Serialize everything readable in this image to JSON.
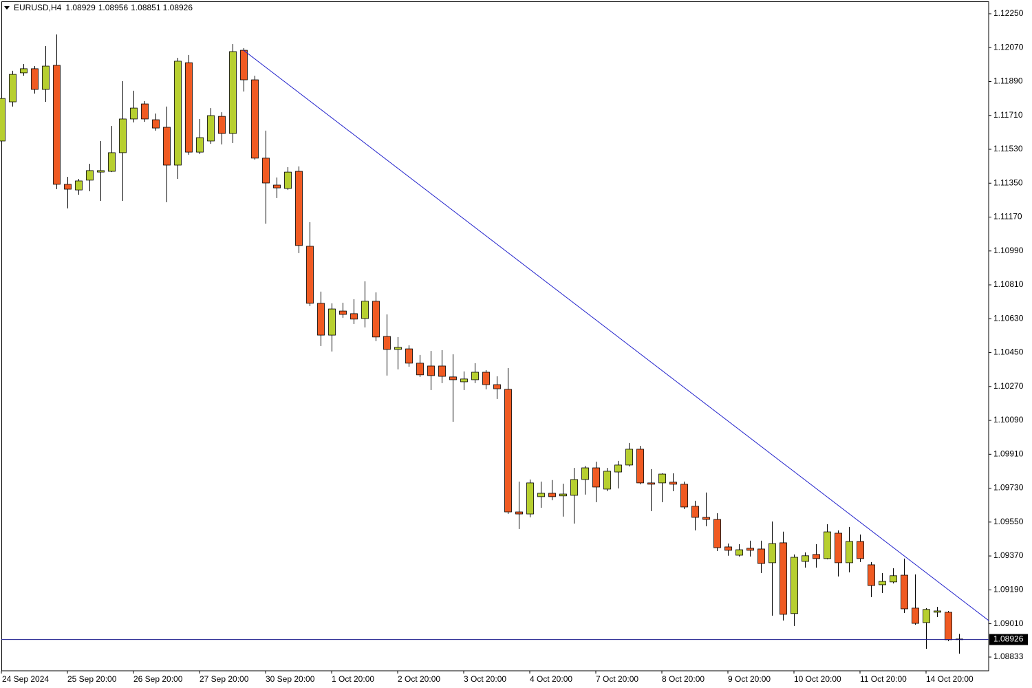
{
  "chart_data": {
    "type": "candlestick",
    "title": "EURUSD,H4",
    "categories": [
      "24 Sep 2024",
      null,
      null,
      null,
      null,
      null,
      "25 Sep 20:00",
      null,
      null,
      null,
      null,
      null,
      "26 Sep 20:00",
      null,
      null,
      null,
      null,
      null,
      "27 Sep 20:00",
      null,
      null,
      null,
      null,
      null,
      "30 Sep 20:00",
      null,
      null,
      null,
      null,
      null,
      "1 Oct 20:00",
      null,
      null,
      null,
      null,
      null,
      "2 Oct 20:00",
      null,
      null,
      null,
      null,
      null,
      "3 Oct 20:00",
      null,
      null,
      null,
      null,
      null,
      "4 Oct 20:00",
      null,
      null,
      null,
      null,
      null,
      "7 Oct 20:00",
      null,
      null,
      null,
      null,
      null,
      "8 Oct 20:00",
      null,
      null,
      null,
      null,
      null,
      "9 Oct 20:00",
      null,
      null,
      null,
      null,
      null,
      "10 Oct 20:00",
      null,
      null,
      null,
      null,
      null,
      "11 Oct 20:00",
      null,
      null,
      null,
      null,
      null,
      "14 Oct 20:00",
      null,
      null,
      null
    ],
    "open": [
      1.11574,
      1.11782,
      1.11936,
      1.11958,
      1.11848,
      1.11976,
      1.11344,
      1.11314,
      1.11366,
      1.11409,
      1.11413,
      1.11512,
      1.11691,
      1.11771,
      1.11687,
      1.11647,
      1.11446,
      1.1199,
      1.11515,
      1.11574,
      1.11705,
      1.11614,
      1.12056,
      1.11899,
      1.11483,
      1.1134,
      1.11322,
      1.11413,
      1.11015,
      1.10712,
      1.10543,
      1.10671,
      1.10657,
      1.10631,
      1.10723,
      1.10536,
      1.10467,
      1.1047,
      1.10394,
      1.10379,
      1.10379,
      1.10321,
      1.10295,
      1.10306,
      1.10346,
      1.1028,
      1.10255,
      1.09604,
      1.09593,
      1.09685,
      1.09703,
      1.09689,
      1.09692,
      1.09776,
      1.09838,
      1.09725,
      1.09816,
      1.09853,
      1.09937,
      1.09758,
      1.09758,
      1.09762,
      1.09751,
      1.09634,
      1.09575,
      1.09564,
      1.09418,
      1.09374,
      1.09411,
      1.09407,
      1.09334,
      1.0944,
      1.09064,
      1.09341,
      1.09378,
      1.09356,
      1.09491,
      1.09334,
      1.09447,
      1.09323,
      1.09217,
      1.09232,
      1.09268,
      1.09093,
      1.09016,
      1.09071,
      1.09071,
      1.08929
    ],
    "high": [
      1.11811,
      1.11947,
      1.11983,
      1.11972,
      1.12078,
      1.1214,
      1.11384,
      1.11373,
      1.11453,
      1.11574,
      1.11654,
      1.11892,
      1.11841,
      1.11786,
      1.1172,
      1.11757,
      1.12016,
      1.12031,
      1.11691,
      1.11749,
      1.11727,
      1.12089,
      1.12067,
      1.11921,
      1.11629,
      1.1138,
      1.11435,
      1.11439,
      1.11143,
      1.10774,
      1.10712,
      1.10715,
      1.10734,
      1.10829,
      1.1077,
      1.10653,
      1.10533,
      1.10489,
      1.10438,
      1.10459,
      1.10463,
      1.10441,
      1.1035,
      1.10394,
      1.10357,
      1.10324,
      1.10368,
      1.09765,
      1.09776,
      1.09765,
      1.09773,
      1.09754,
      1.09838,
      1.09849,
      1.09871,
      1.09838,
      1.09875,
      1.0997,
      1.09955,
      1.09831,
      1.09809,
      1.09809,
      1.09765,
      1.09663,
      1.09707,
      1.09597,
      1.09436,
      1.09433,
      1.09451,
      1.09451,
      1.09553,
      1.09499,
      1.09378,
      1.09389,
      1.09433,
      1.09539,
      1.09506,
      1.09524,
      1.09484,
      1.09338,
      1.09279,
      1.09305,
      1.09356,
      1.09272,
      1.09093,
      1.091,
      1.09078,
      1.08956
    ],
    "low": [
      1.11548,
      1.11757,
      1.11921,
      1.11826,
      1.11782,
      1.11318,
      1.11216,
      1.11289,
      1.11307,
      1.11256,
      1.11409,
      1.11256,
      1.11673,
      1.11676,
      1.11629,
      1.11249,
      1.11373,
      1.11501,
      1.11505,
      1.11559,
      1.11556,
      1.11563,
      1.11837,
      1.11475,
      1.11135,
      1.11271,
      1.11314,
      1.10978,
      1.10697,
      1.10485,
      1.10456,
      1.10635,
      1.10602,
      1.10584,
      1.10511,
      1.10328,
      1.10361,
      1.10375,
      1.10321,
      1.10251,
      1.10288,
      1.10083,
      1.10251,
      1.10288,
      1.10255,
      1.10204,
      1.09593,
      1.09513,
      1.09575,
      1.09626,
      1.09666,
      1.09579,
      1.09542,
      1.09696,
      1.09656,
      1.09714,
      1.09729,
      1.09846,
      1.09751,
      1.09608,
      1.09656,
      1.09714,
      1.09619,
      1.09506,
      1.09528,
      1.09396,
      1.09371,
      1.09367,
      1.09367,
      1.09279,
      1.09053,
      1.09027,
      1.08998,
      1.09308,
      1.09308,
      1.09352,
      1.09261,
      1.09283,
      1.09338,
      1.09151,
      1.09173,
      1.09224,
      1.09067,
      1.09005,
      1.08877,
      1.09045,
      1.08917,
      1.08851
    ],
    "close": [
      1.118,
      1.11928,
      1.11958,
      1.11848,
      1.11972,
      1.11344,
      1.11318,
      1.11362,
      1.11417,
      1.11417,
      1.11512,
      1.11691,
      1.11749,
      1.11691,
      1.11643,
      1.11446,
      1.11998,
      1.11515,
      1.11592,
      1.11709,
      1.11614,
      1.12049,
      1.11899,
      1.11483,
      1.11351,
      1.11325,
      1.11409,
      1.11019,
      1.10712,
      1.10543,
      1.10682,
      1.10653,
      1.10628,
      1.10723,
      1.10533,
      1.10467,
      1.10478,
      1.10394,
      1.10332,
      1.10328,
      1.10324,
      1.10306,
      1.1031,
      1.10346,
      1.1028,
      1.10258,
      1.09604,
      1.09593,
      1.09758,
      1.09703,
      1.09685,
      1.09699,
      1.09776,
      1.09838,
      1.09736,
      1.0982,
      1.09853,
      1.09937,
      1.09758,
      1.09751,
      1.09805,
      1.09751,
      1.0963,
      1.09575,
      1.09564,
      1.09414,
      1.094,
      1.09403,
      1.094,
      1.0933,
      1.09436,
      1.0906,
      1.09363,
      1.09371,
      1.09356,
      1.09498,
      1.09334,
      1.09447,
      1.09356,
      1.09213,
      1.09235,
      1.09265,
      1.09089,
      1.09012,
      1.09086,
      1.09078,
      1.08925,
      1.08926
    ],
    "up_color": "#b7cf2f",
    "down_color": "#f05a22",
    "ylim": [
      1.0876,
      1.12323
    ],
    "yticks": [
      {
        "value": 1.1225,
        "label": "1.12250"
      },
      {
        "value": 1.1207,
        "label": "1.12070"
      },
      {
        "value": 1.1189,
        "label": "1.11890"
      },
      {
        "value": 1.1171,
        "label": "1.11710"
      },
      {
        "value": 1.1153,
        "label": "1.11530"
      },
      {
        "value": 1.1135,
        "label": "1.11350"
      },
      {
        "value": 1.1117,
        "label": "1.11170"
      },
      {
        "value": 1.1099,
        "label": "1.10990"
      },
      {
        "value": 1.1081,
        "label": "1.10810"
      },
      {
        "value": 1.1063,
        "label": "1.10630"
      },
      {
        "value": 1.1045,
        "label": "1.10450"
      },
      {
        "value": 1.1027,
        "label": "1.10270"
      },
      {
        "value": 1.1009,
        "label": "1.10090"
      },
      {
        "value": 1.0991,
        "label": "1.09910"
      },
      {
        "value": 1.0973,
        "label": "1.09730"
      },
      {
        "value": 1.0955,
        "label": "1.09550"
      },
      {
        "value": 1.0937,
        "label": "1.09370"
      },
      {
        "value": 1.0919,
        "label": "1.09190"
      },
      {
        "value": 1.0901,
        "label": "1.09010"
      },
      1.08833
    ],
    "current_price": 1.08926,
    "current_price_color": "#1a1a8c",
    "trendline": {
      "color": "#2222cc",
      "points": [
        {
          "x": 22,
          "y": 1.12056
        },
        {
          "x": 82,
          "y": 1.09371
        }
      ]
    }
  }
}
